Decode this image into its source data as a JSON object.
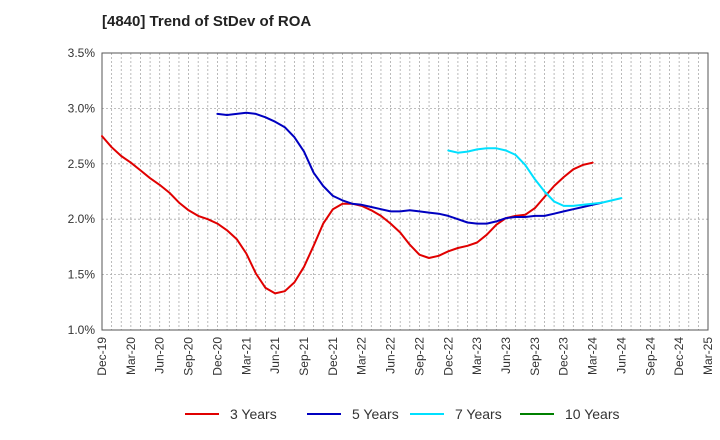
{
  "title": "[4840]  Trend of StDev of ROA",
  "chart_data": {
    "type": "line",
    "title": "[4840]  Trend of StDev of ROA",
    "xlabel": "",
    "ylabel": "",
    "ylim": [
      1.0,
      3.5
    ],
    "y_ticks": [
      "1.0%",
      "1.5%",
      "2.0%",
      "2.5%",
      "3.0%",
      "3.5%"
    ],
    "x_ticks": [
      "Dec-19",
      "Mar-20",
      "Jun-20",
      "Sep-20",
      "Dec-20",
      "Mar-21",
      "Jun-21",
      "Sep-21",
      "Dec-21",
      "Mar-22",
      "Jun-22",
      "Sep-22",
      "Dec-22",
      "Mar-23",
      "Jun-23",
      "Sep-23",
      "Dec-23",
      "Mar-24",
      "Jun-24",
      "Sep-24",
      "Dec-24",
      "Mar-25"
    ],
    "grid": true,
    "legend_position": "bottom",
    "series": [
      {
        "name": "3 Years",
        "color": "#e00000",
        "values": [
          2.75,
          2.65,
          2.57,
          2.51,
          2.44,
          2.37,
          2.31,
          2.24,
          2.15,
          2.08,
          2.03,
          2.0,
          1.96,
          1.9,
          1.82,
          1.69,
          1.51,
          1.38,
          1.33,
          1.35,
          1.43,
          1.57,
          1.76,
          1.96,
          2.09,
          2.14,
          2.14,
          2.12,
          2.08,
          2.03,
          1.96,
          1.88,
          1.77,
          1.68,
          1.65,
          1.67,
          1.71,
          1.74,
          1.76,
          1.79,
          1.86,
          1.95,
          2.01,
          2.03,
          2.04,
          2.1,
          2.2,
          2.3,
          2.38,
          2.45,
          2.49,
          2.51
        ]
      },
      {
        "name": "5 Years",
        "color": "#0000c0",
        "values": [
          null,
          null,
          null,
          null,
          null,
          null,
          null,
          null,
          null,
          null,
          null,
          null,
          2.95,
          2.94,
          2.95,
          2.96,
          2.95,
          2.92,
          2.88,
          2.83,
          2.74,
          2.61,
          2.42,
          2.3,
          2.21,
          2.17,
          2.14,
          2.13,
          2.11,
          2.09,
          2.07,
          2.07,
          2.08,
          2.07,
          2.06,
          2.05,
          2.03,
          2.0,
          1.97,
          1.96,
          1.96,
          1.98,
          2.01,
          2.02,
          2.02,
          2.03,
          2.03,
          2.05,
          2.07,
          2.09,
          2.11,
          2.13,
          2.15
        ]
      },
      {
        "name": "7 Years",
        "color": "#00e0ff",
        "values": [
          null,
          null,
          null,
          null,
          null,
          null,
          null,
          null,
          null,
          null,
          null,
          null,
          null,
          null,
          null,
          null,
          null,
          null,
          null,
          null,
          null,
          null,
          null,
          null,
          null,
          null,
          null,
          null,
          null,
          null,
          null,
          null,
          null,
          null,
          null,
          null,
          2.62,
          2.6,
          2.61,
          2.63,
          2.64,
          2.64,
          2.62,
          2.58,
          2.49,
          2.36,
          2.25,
          2.16,
          2.12,
          2.12,
          2.13,
          2.14,
          2.15,
          2.17,
          2.19
        ]
      },
      {
        "name": "10 Years",
        "color": "#008000",
        "values": []
      }
    ]
  }
}
